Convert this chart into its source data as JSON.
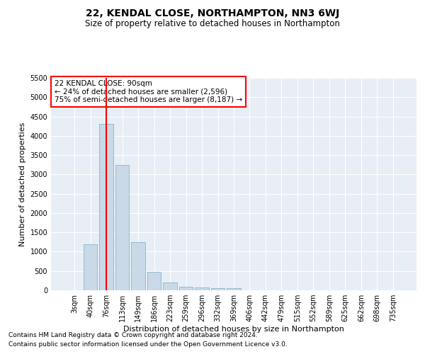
{
  "title": "22, KENDAL CLOSE, NORTHAMPTON, NN3 6WJ",
  "subtitle": "Size of property relative to detached houses in Northampton",
  "xlabel": "Distribution of detached houses by size in Northampton",
  "ylabel": "Number of detached properties",
  "footnote1": "Contains HM Land Registry data © Crown copyright and database right 2024.",
  "footnote2": "Contains public sector information licensed under the Open Government Licence v3.0.",
  "bar_labels": [
    "3sqm",
    "40sqm",
    "76sqm",
    "113sqm",
    "149sqm",
    "186sqm",
    "223sqm",
    "259sqm",
    "296sqm",
    "332sqm",
    "369sqm",
    "406sqm",
    "442sqm",
    "479sqm",
    "515sqm",
    "552sqm",
    "589sqm",
    "625sqm",
    "662sqm",
    "698sqm",
    "735sqm"
  ],
  "bar_values": [
    0,
    1200,
    4300,
    3250,
    1250,
    480,
    200,
    100,
    70,
    50,
    50,
    0,
    0,
    0,
    0,
    0,
    0,
    0,
    0,
    0,
    0
  ],
  "bar_color": "#c9d9e8",
  "bar_edge_color": "#8ab4cc",
  "vline_color": "red",
  "vline_x": 2.0,
  "annotation_text_line1": "22 KENDAL CLOSE: 90sqm",
  "annotation_text_line2": "← 24% of detached houses are smaller (2,596)",
  "annotation_text_line3": "75% of semi-detached houses are larger (8,187) →",
  "annotation_box_color": "red",
  "ylim": [
    0,
    5500
  ],
  "yticks": [
    0,
    500,
    1000,
    1500,
    2000,
    2500,
    3000,
    3500,
    4000,
    4500,
    5000,
    5500
  ],
  "background_color": "#e8eef5",
  "grid_color": "white",
  "title_fontsize": 10,
  "subtitle_fontsize": 8.5,
  "tick_fontsize": 7,
  "label_fontsize": 8,
  "footnote_fontsize": 6.5,
  "annotation_fontsize": 7.5
}
